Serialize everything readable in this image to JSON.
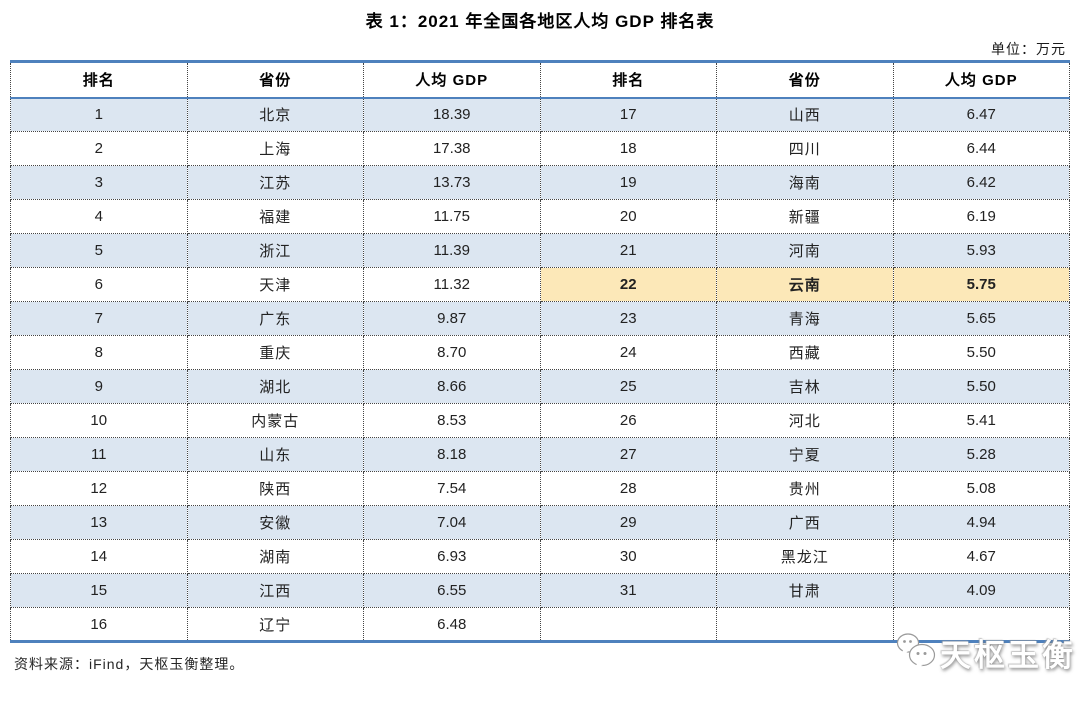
{
  "title": "表 1：2021 年全国各地区人均 GDP 排名表",
  "unit_label": "单位：万元",
  "table": {
    "headers": [
      "排名",
      "省份",
      "人均 GDP",
      "排名",
      "省份",
      "人均 GDP"
    ],
    "highlight_rank": "22",
    "left_rows": [
      {
        "rank": "1",
        "province": "北京",
        "gdp": "18.39"
      },
      {
        "rank": "2",
        "province": "上海",
        "gdp": "17.38"
      },
      {
        "rank": "3",
        "province": "江苏",
        "gdp": "13.73"
      },
      {
        "rank": "4",
        "province": "福建",
        "gdp": "11.75"
      },
      {
        "rank": "5",
        "province": "浙江",
        "gdp": "11.39"
      },
      {
        "rank": "6",
        "province": "天津",
        "gdp": "11.32"
      },
      {
        "rank": "7",
        "province": "广东",
        "gdp": "9.87"
      },
      {
        "rank": "8",
        "province": "重庆",
        "gdp": "8.70"
      },
      {
        "rank": "9",
        "province": "湖北",
        "gdp": "8.66"
      },
      {
        "rank": "10",
        "province": "内蒙古",
        "gdp": "8.53"
      },
      {
        "rank": "11",
        "province": "山东",
        "gdp": "8.18"
      },
      {
        "rank": "12",
        "province": "陕西",
        "gdp": "7.54"
      },
      {
        "rank": "13",
        "province": "安徽",
        "gdp": "7.04"
      },
      {
        "rank": "14",
        "province": "湖南",
        "gdp": "6.93"
      },
      {
        "rank": "15",
        "province": "江西",
        "gdp": "6.55"
      },
      {
        "rank": "16",
        "province": "辽宁",
        "gdp": "6.48"
      }
    ],
    "right_rows": [
      {
        "rank": "17",
        "province": "山西",
        "gdp": "6.47"
      },
      {
        "rank": "18",
        "province": "四川",
        "gdp": "6.44"
      },
      {
        "rank": "19",
        "province": "海南",
        "gdp": "6.42"
      },
      {
        "rank": "20",
        "province": "新疆",
        "gdp": "6.19"
      },
      {
        "rank": "21",
        "province": "河南",
        "gdp": "5.93"
      },
      {
        "rank": "22",
        "province": "云南",
        "gdp": "5.75"
      },
      {
        "rank": "23",
        "province": "青海",
        "gdp": "5.65"
      },
      {
        "rank": "24",
        "province": "西藏",
        "gdp": "5.50"
      },
      {
        "rank": "25",
        "province": "吉林",
        "gdp": "5.50"
      },
      {
        "rank": "26",
        "province": "河北",
        "gdp": "5.41"
      },
      {
        "rank": "27",
        "province": "宁夏",
        "gdp": "5.28"
      },
      {
        "rank": "28",
        "province": "贵州",
        "gdp": "5.08"
      },
      {
        "rank": "29",
        "province": "广西",
        "gdp": "4.94"
      },
      {
        "rank": "30",
        "province": "黑龙江",
        "gdp": "4.67"
      },
      {
        "rank": "31",
        "province": "甘肃",
        "gdp": "4.09"
      },
      {
        "rank": "",
        "province": "",
        "gdp": ""
      }
    ]
  },
  "footer": {
    "source": "资料来源：iFind，天枢玉衡整理。"
  },
  "watermark": {
    "text": "天枢玉衡",
    "icon": "wechat-icon"
  },
  "colors": {
    "border_blue": "#4e81bd",
    "row_alt": "#dce6f1",
    "highlight": "#fce8b8"
  }
}
